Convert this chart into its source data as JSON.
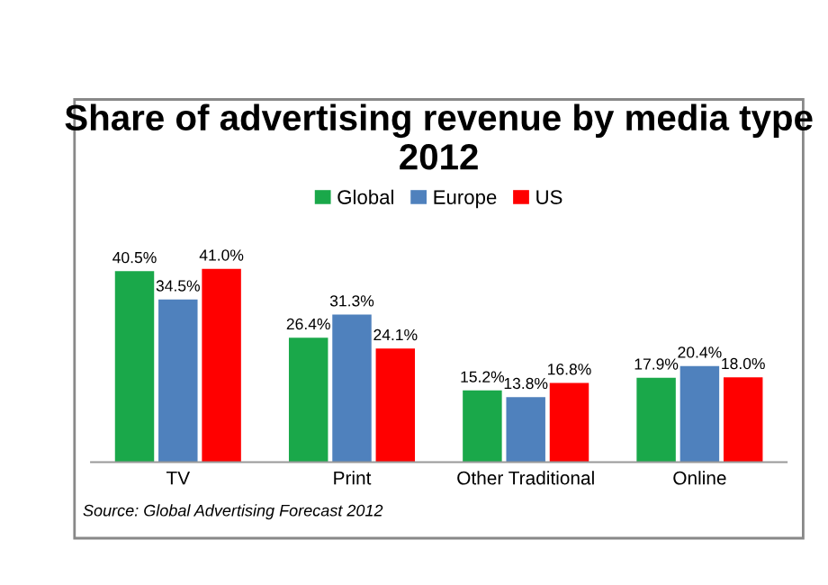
{
  "chart_data": {
    "type": "bar",
    "title": "Share of advertising revenue by media type 2012",
    "categories": [
      "TV",
      "Print",
      "Other Traditional",
      "Online"
    ],
    "series": [
      {
        "name": "Global",
        "color": "#1aa84a",
        "values": [
          40.5,
          26.4,
          15.2,
          17.9
        ],
        "value_labels": [
          "40.5%",
          "26.4%",
          "15.2%",
          "17.9%"
        ]
      },
      {
        "name": "Europe",
        "color": "#4f81bd",
        "values": [
          34.5,
          31.3,
          13.8,
          20.4
        ],
        "value_labels": [
          "34.5%",
          "31.3%",
          "13.8%",
          "20.4%"
        ]
      },
      {
        "name": "US",
        "color": "#ff0000",
        "values": [
          41.0,
          24.1,
          16.8,
          18.0
        ],
        "value_labels": [
          "41.0%",
          "24.1%",
          "16.8%",
          "18.0%"
        ]
      }
    ],
    "legend": "top",
    "grid": false,
    "tick_labels": "x",
    "annotations": [
      "Source: Global Advertising Forecast 2012"
    ]
  }
}
